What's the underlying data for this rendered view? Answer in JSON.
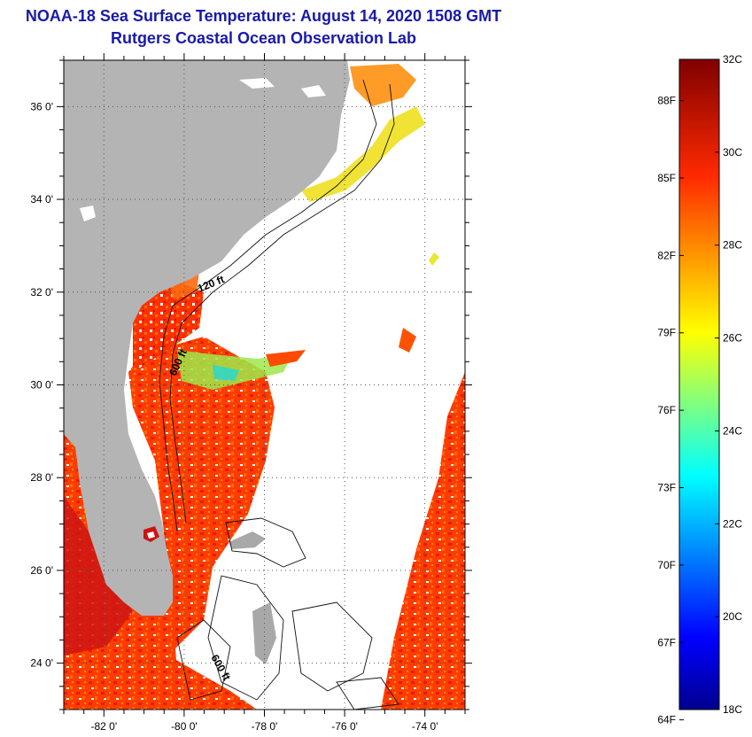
{
  "title": {
    "line1": "NOAA-18 Sea Surface Temperature:  August 14, 2020 1508 GMT",
    "line2": "Rutgers Coastal Ocean Observation Lab"
  },
  "map": {
    "lat_ticks": [
      {
        "value": 36,
        "label": "36 0'"
      },
      {
        "value": 34,
        "label": "34 0'"
      },
      {
        "value": 32,
        "label": "32 0'"
      },
      {
        "value": 30,
        "label": "30 0'"
      },
      {
        "value": 28,
        "label": "28 0'"
      },
      {
        "value": 26,
        "label": "26 0'"
      },
      {
        "value": 24,
        "label": "24 0'"
      }
    ],
    "lon_ticks": [
      {
        "value": -82,
        "label": "-82 0'"
      },
      {
        "value": -80,
        "label": "-80 0'"
      },
      {
        "value": -78,
        "label": "-78 0'"
      },
      {
        "value": -76,
        "label": "-76 0'"
      },
      {
        "value": -74,
        "label": "-74 0'"
      }
    ],
    "lat_range": [
      23,
      37
    ],
    "lon_range": [
      -83,
      -73
    ],
    "contour_labels": [
      "120 ft",
      "600 ft",
      "600 ft"
    ],
    "colors": {
      "land": "#b4b4b4",
      "ocean_no_data": "#ffffff",
      "warm_water": "#ff3a00",
      "hot_water": "#d41010",
      "grid": "#555555"
    }
  },
  "colorbar": {
    "min_c": 18,
    "max_c": 32,
    "celsius_labels": [
      "32C",
      "30C",
      "28C",
      "26C",
      "24C",
      "22C",
      "20C",
      "18C"
    ],
    "fahrenheit_labels": [
      "88F",
      "85F",
      "82F",
      "79F",
      "76F",
      "73F",
      "70F",
      "67F",
      "64F"
    ]
  }
}
